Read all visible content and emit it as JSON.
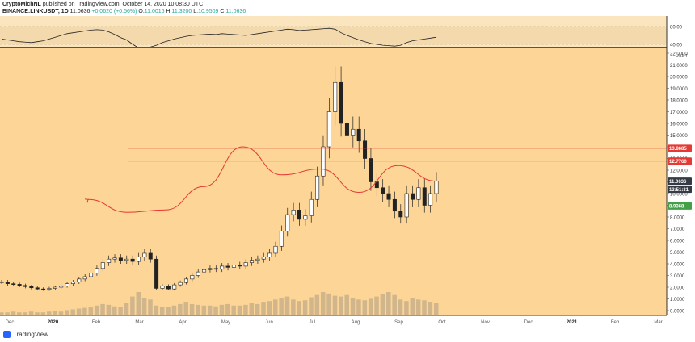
{
  "header": {
    "author": "CryptoMichNL",
    "published_text": "published on TradingView.com, October 14, 2020 10:08:30 UTC",
    "symbol": "BINANCE:LINKUSDT, 1D",
    "last": "11.0636",
    "change": "+0.0620 (+0.56%)",
    "o_label": "O:",
    "o_val": "11.0016",
    "h_label": "H:",
    "h_val": "11.3200",
    "l_label": "L:",
    "l_val": "10.9509",
    "c_label": "C:",
    "c_val": "11.0636"
  },
  "footer": {
    "brand": "TradingView"
  },
  "chart_data": {
    "type": "candlestick",
    "currency": "USDT",
    "x_ticks": [
      "Dec",
      "2020",
      "Feb",
      "Mar",
      "Apr",
      "May",
      "Jun",
      "Jul",
      "Aug",
      "Sep",
      "Oct",
      "Nov",
      "Dec",
      "2021",
      "Feb",
      "Mar",
      "Ap"
    ],
    "y_ticks": [
      "22.0000",
      "21.0000",
      "20.0000",
      "19.0000",
      "18.0000",
      "17.0000",
      "16.0000",
      "15.0000",
      "14.0000",
      "13.0000",
      "12.0000",
      "11.0000",
      "10.0000",
      "9.0000",
      "8.0000",
      "7.0000",
      "6.0000",
      "5.0000",
      "4.0000",
      "3.0000",
      "2.0000",
      "1.0000",
      "0.0000"
    ],
    "rsi_ticks": [
      "80.00",
      "40.00"
    ],
    "price_labels": [
      {
        "text": "13.8685",
        "color": "#e53935"
      },
      {
        "text": "12.7760",
        "color": "#e53935"
      },
      {
        "text": "11.0636",
        "color": "#363a45"
      },
      {
        "text": "13:51:31",
        "color": "#363a45"
      },
      {
        "text": "8.9368",
        "color": "#43a047"
      }
    ],
    "series_close": [
      2.45,
      2.3,
      2.25,
      2.15,
      2.05,
      1.95,
      1.85,
      1.82,
      1.9,
      2.0,
      2.1,
      2.3,
      2.45,
      2.7,
      2.9,
      3.2,
      3.6,
      4.1,
      4.4,
      4.5,
      4.3,
      4.4,
      4.2,
      4.6,
      4.9,
      4.4,
      1.9,
      2.1,
      1.85,
      2.2,
      2.4,
      2.7,
      3.0,
      3.3,
      3.5,
      3.6,
      3.55,
      3.8,
      3.7,
      3.9,
      3.8,
      4.1,
      4.3,
      4.4,
      4.6,
      4.9,
      5.5,
      6.8,
      8.2,
      8.6,
      7.8,
      8.1,
      9.5,
      11.5,
      14.0,
      17.0,
      19.5,
      16.0,
      15.0,
      15.5,
      14.5,
      13.0,
      11.0,
      10.5,
      10.0,
      9.5,
      8.5,
      8.0,
      10.0,
      9.5,
      10.5,
      9.0,
      10.0,
      11.0636
    ],
    "volume": [
      3,
      3,
      4,
      3,
      3,
      4,
      3,
      3,
      4,
      5,
      4,
      6,
      7,
      8,
      9,
      10,
      12,
      14,
      13,
      11,
      10,
      15,
      24,
      30,
      22,
      20,
      12,
      10,
      10,
      12,
      14,
      16,
      14,
      13,
      12,
      12,
      11,
      13,
      14,
      12,
      12,
      13,
      15,
      14,
      16,
      18,
      20,
      22,
      24,
      20,
      18,
      19,
      23,
      26,
      30,
      28,
      25,
      24,
      26,
      22,
      20,
      19,
      21,
      24,
      27,
      30,
      26,
      20,
      18,
      22,
      20,
      19,
      17,
      15
    ],
    "rsi": [
      52,
      50,
      48,
      46,
      45,
      44,
      46,
      48,
      52,
      56,
      60,
      64,
      66,
      68,
      70,
      72,
      73,
      72,
      68,
      62,
      55,
      50,
      40,
      32,
      30,
      34,
      38,
      44,
      48,
      52,
      55,
      58,
      60,
      61,
      62,
      63,
      62,
      64,
      63,
      62,
      61,
      60,
      62,
      64,
      66,
      68,
      70,
      72,
      74,
      73,
      71,
      72,
      73,
      74,
      75,
      76,
      74,
      66,
      60,
      55,
      50,
      46,
      42,
      40,
      38,
      37,
      36,
      38,
      44,
      48,
      50,
      52,
      54,
      56
    ],
    "zones": [
      {
        "type": "resistance",
        "from_label": "Aug",
        "to_label": "Feb",
        "low": 13.5,
        "high": 13.8685
      },
      {
        "type": "resistance",
        "from_label": "Sep",
        "to_label": "Feb",
        "low": 12.3,
        "high": 12.776
      },
      {
        "type": "support",
        "from_label": "Oct",
        "to_label": "Feb",
        "low": 8.2,
        "high": 8.9368
      }
    ],
    "projection": [
      11.06,
      12.4,
      10.1,
      12.1,
      11.6,
      14.0,
      10.6,
      8.6,
      8.4,
      9.5
    ]
  }
}
